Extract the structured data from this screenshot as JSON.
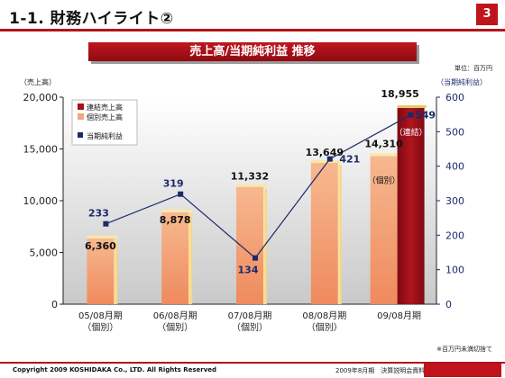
{
  "header": {
    "title": "1-1. 財務ハイライト②",
    "page_number": "3"
  },
  "banner": {
    "title": "売上高/当期純利益 推移"
  },
  "unit_note": "単位：百万円",
  "footnote": "※百万円未満切捨て",
  "footer": {
    "copyright": "Copyright 2009 KOSHIDAKA Co., LTD. All Rights Reserved",
    "doc_title": "2009年8月期　決算説明会資料",
    "logo": "Koshidaka"
  },
  "colors": {
    "accent": "#b5121b",
    "bar_consolidated": "#a3111b",
    "bar_individual": "#f2a47a",
    "line": "#1b2a6b"
  },
  "chart_data": {
    "type": "bar",
    "categories": [
      "05/08月期",
      "06/08月期",
      "07/08月期",
      "08/08月期",
      "09/08月期"
    ],
    "category_sublabels": [
      "（個別）",
      "（個別）",
      "（個別）",
      "（個別）",
      ""
    ],
    "left_axis_label": "（売上高）",
    "right_axis_label": "（当期純利益）",
    "left_ylim": [
      0,
      20000
    ],
    "left_ticks": [
      "0",
      "5,000",
      "10,000",
      "15,000",
      "20,000"
    ],
    "right_ylim": [
      0,
      600
    ],
    "right_ticks": [
      "0",
      "100",
      "200",
      "300",
      "400",
      "500",
      "600"
    ],
    "series": [
      {
        "name": "連結売上高",
        "kind": "bar",
        "values": [
          null,
          null,
          null,
          null,
          18955
        ],
        "labels": [
          "",
          "",
          "",
          "",
          "18,955"
        ]
      },
      {
        "name": "個別売上高",
        "kind": "bar",
        "values": [
          6360,
          8878,
          11332,
          13649,
          14310
        ],
        "labels": [
          "6,360",
          "8,878",
          "11,332",
          "13,649",
          "14,310"
        ]
      },
      {
        "name": "当期純利益",
        "kind": "line",
        "axis": "right",
        "values": [
          233,
          319,
          134,
          421,
          549
        ],
        "labels": [
          "233",
          "319",
          "134",
          "421",
          "549"
        ]
      }
    ],
    "annotations": [
      "（連結）",
      "（個別）"
    ],
    "grid": false,
    "legend_position": "top-left"
  }
}
